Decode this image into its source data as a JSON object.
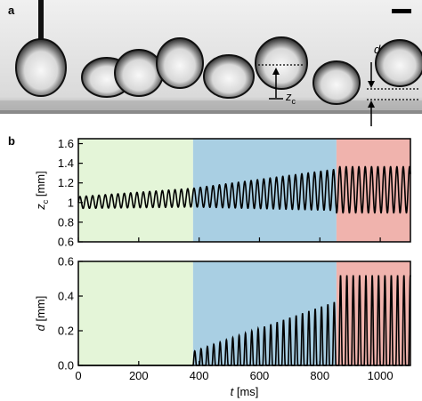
{
  "panel_a": {
    "label": "a",
    "annotations": {
      "d_label": "d",
      "zc_label": "z",
      "zc_sub": "c"
    },
    "colors": {
      "background": "#dcdcdc",
      "drop_outline": "#111111",
      "drop_highlight": "#f4f4f4"
    }
  },
  "panel_b": {
    "label": "b"
  },
  "chart_data": [
    {
      "type": "line",
      "ylabel": "z",
      "ylabel_sub": "c",
      "ylabel_unit": " [mm]",
      "xlim": [
        0,
        1100
      ],
      "ylim": [
        0.6,
        1.65
      ],
      "yticks": [
        0.6,
        0.8,
        1.0,
        1.2,
        1.4,
        1.6
      ],
      "ytick_labels": [
        "0.6",
        "0.8",
        "1",
        "1.2",
        "1.4",
        "1.6"
      ],
      "regions": [
        {
          "x0": 0,
          "x1": 380,
          "color": "#e4f5d8"
        },
        {
          "x0": 380,
          "x1": 855,
          "color": "#a9cfe3"
        },
        {
          "x0": 855,
          "x1": 1100,
          "color": "#f0b3ad"
        }
      ],
      "signal": {
        "period_ms": 21,
        "center_start": 1.0,
        "center_end_region2": 1.13,
        "center_region3": 1.13,
        "amp_start": 0.12,
        "amp_end_region1": 0.19,
        "amp_end_region2": 0.42,
        "amp_region3": 0.47
      },
      "line_color": "#000000"
    },
    {
      "type": "line",
      "ylabel": "d",
      "ylabel_unit": " [mm]",
      "xlabel": "t",
      "xlabel_unit": " [ms]",
      "xlim": [
        0,
        1100
      ],
      "ylim": [
        0,
        0.6
      ],
      "xticks": [
        0,
        200,
        400,
        600,
        800,
        1000
      ],
      "xtick_labels": [
        "0",
        "200",
        "400",
        "600",
        "800",
        "1000"
      ],
      "yticks": [
        0,
        0.2,
        0.4,
        0.6
      ],
      "ytick_labels": [
        "0.0",
        "0.2",
        "0.4",
        "0.6"
      ],
      "regions": [
        {
          "x0": 0,
          "x1": 380,
          "color": "#e4f5d8"
        },
        {
          "x0": 380,
          "x1": 855,
          "color": "#a9cfe3"
        },
        {
          "x0": 855,
          "x1": 1100,
          "color": "#f0b3ad"
        }
      ],
      "signal": {
        "period_ms": 21,
        "onset_ms": 380,
        "peak_start": 0.08,
        "peak_end_region2": 0.37,
        "peak_region3": 0.52
      },
      "line_color": "#000000"
    }
  ]
}
